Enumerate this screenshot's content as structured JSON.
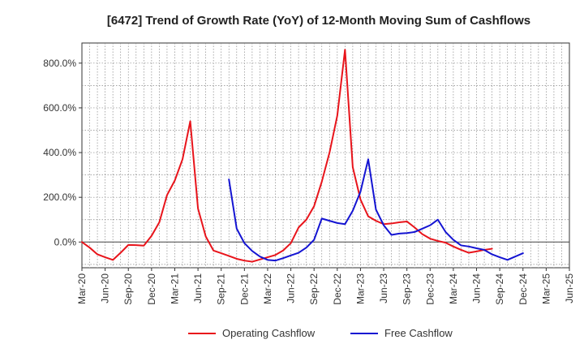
{
  "chart_data": {
    "type": "line",
    "title": "[6472]  Trend of Growth Rate (YoY) of 12-Month Moving Sum of Cashflows",
    "x_ticks": [
      "Mar-20",
      "Jun-20",
      "Sep-20",
      "Dec-20",
      "Mar-21",
      "Jun-21",
      "Sep-21",
      "Dec-21",
      "Mar-22",
      "Jun-22",
      "Sep-22",
      "Dec-22",
      "Mar-23",
      "Jun-23",
      "Sep-23",
      "Dec-23",
      "Mar-24",
      "Jun-24",
      "Sep-24",
      "Dec-24",
      "Mar-25",
      "Jun-25"
    ],
    "y_ticks": [
      {
        "value": 0,
        "label": "0.0%"
      },
      {
        "value": 200,
        "label": "200.0%"
      },
      {
        "value": 400,
        "label": "400.0%"
      },
      {
        "value": 600,
        "label": "600.0%"
      },
      {
        "value": 800,
        "label": "800.0%"
      }
    ],
    "ylim": [
      -115,
      890
    ],
    "grid": true,
    "legend_position": "bottom",
    "series": [
      {
        "name": "Operating Cashflow",
        "color": "#e8141b",
        "values": [
          0,
          -25,
          -55,
          -68,
          -80,
          -48,
          -13,
          -14,
          -16,
          28,
          88,
          210,
          275,
          370,
          540,
          150,
          25,
          -38,
          -50,
          -62,
          -75,
          -83,
          -88,
          -78,
          -68,
          -58,
          -38,
          -5,
          65,
          100,
          160,
          270,
          400,
          565,
          860,
          335,
          190,
          115,
          95,
          80,
          83,
          88,
          92,
          65,
          35,
          15,
          5,
          -3,
          -20,
          -35,
          -48,
          -42,
          -35,
          -30
        ]
      },
      {
        "name": "Free Cashflow",
        "color": "#1414d2",
        "values": [
          null,
          null,
          null,
          null,
          null,
          null,
          null,
          null,
          null,
          null,
          null,
          null,
          null,
          null,
          null,
          null,
          null,
          null,
          null,
          280,
          60,
          -5,
          -40,
          -65,
          -80,
          -83,
          -72,
          -60,
          -48,
          -25,
          10,
          105,
          95,
          85,
          80,
          140,
          225,
          370,
          145,
          75,
          32,
          38,
          40,
          45,
          60,
          75,
          100,
          45,
          10,
          -15,
          -20,
          -28,
          -35,
          -55,
          -68,
          -80,
          -65,
          -50
        ]
      }
    ]
  }
}
